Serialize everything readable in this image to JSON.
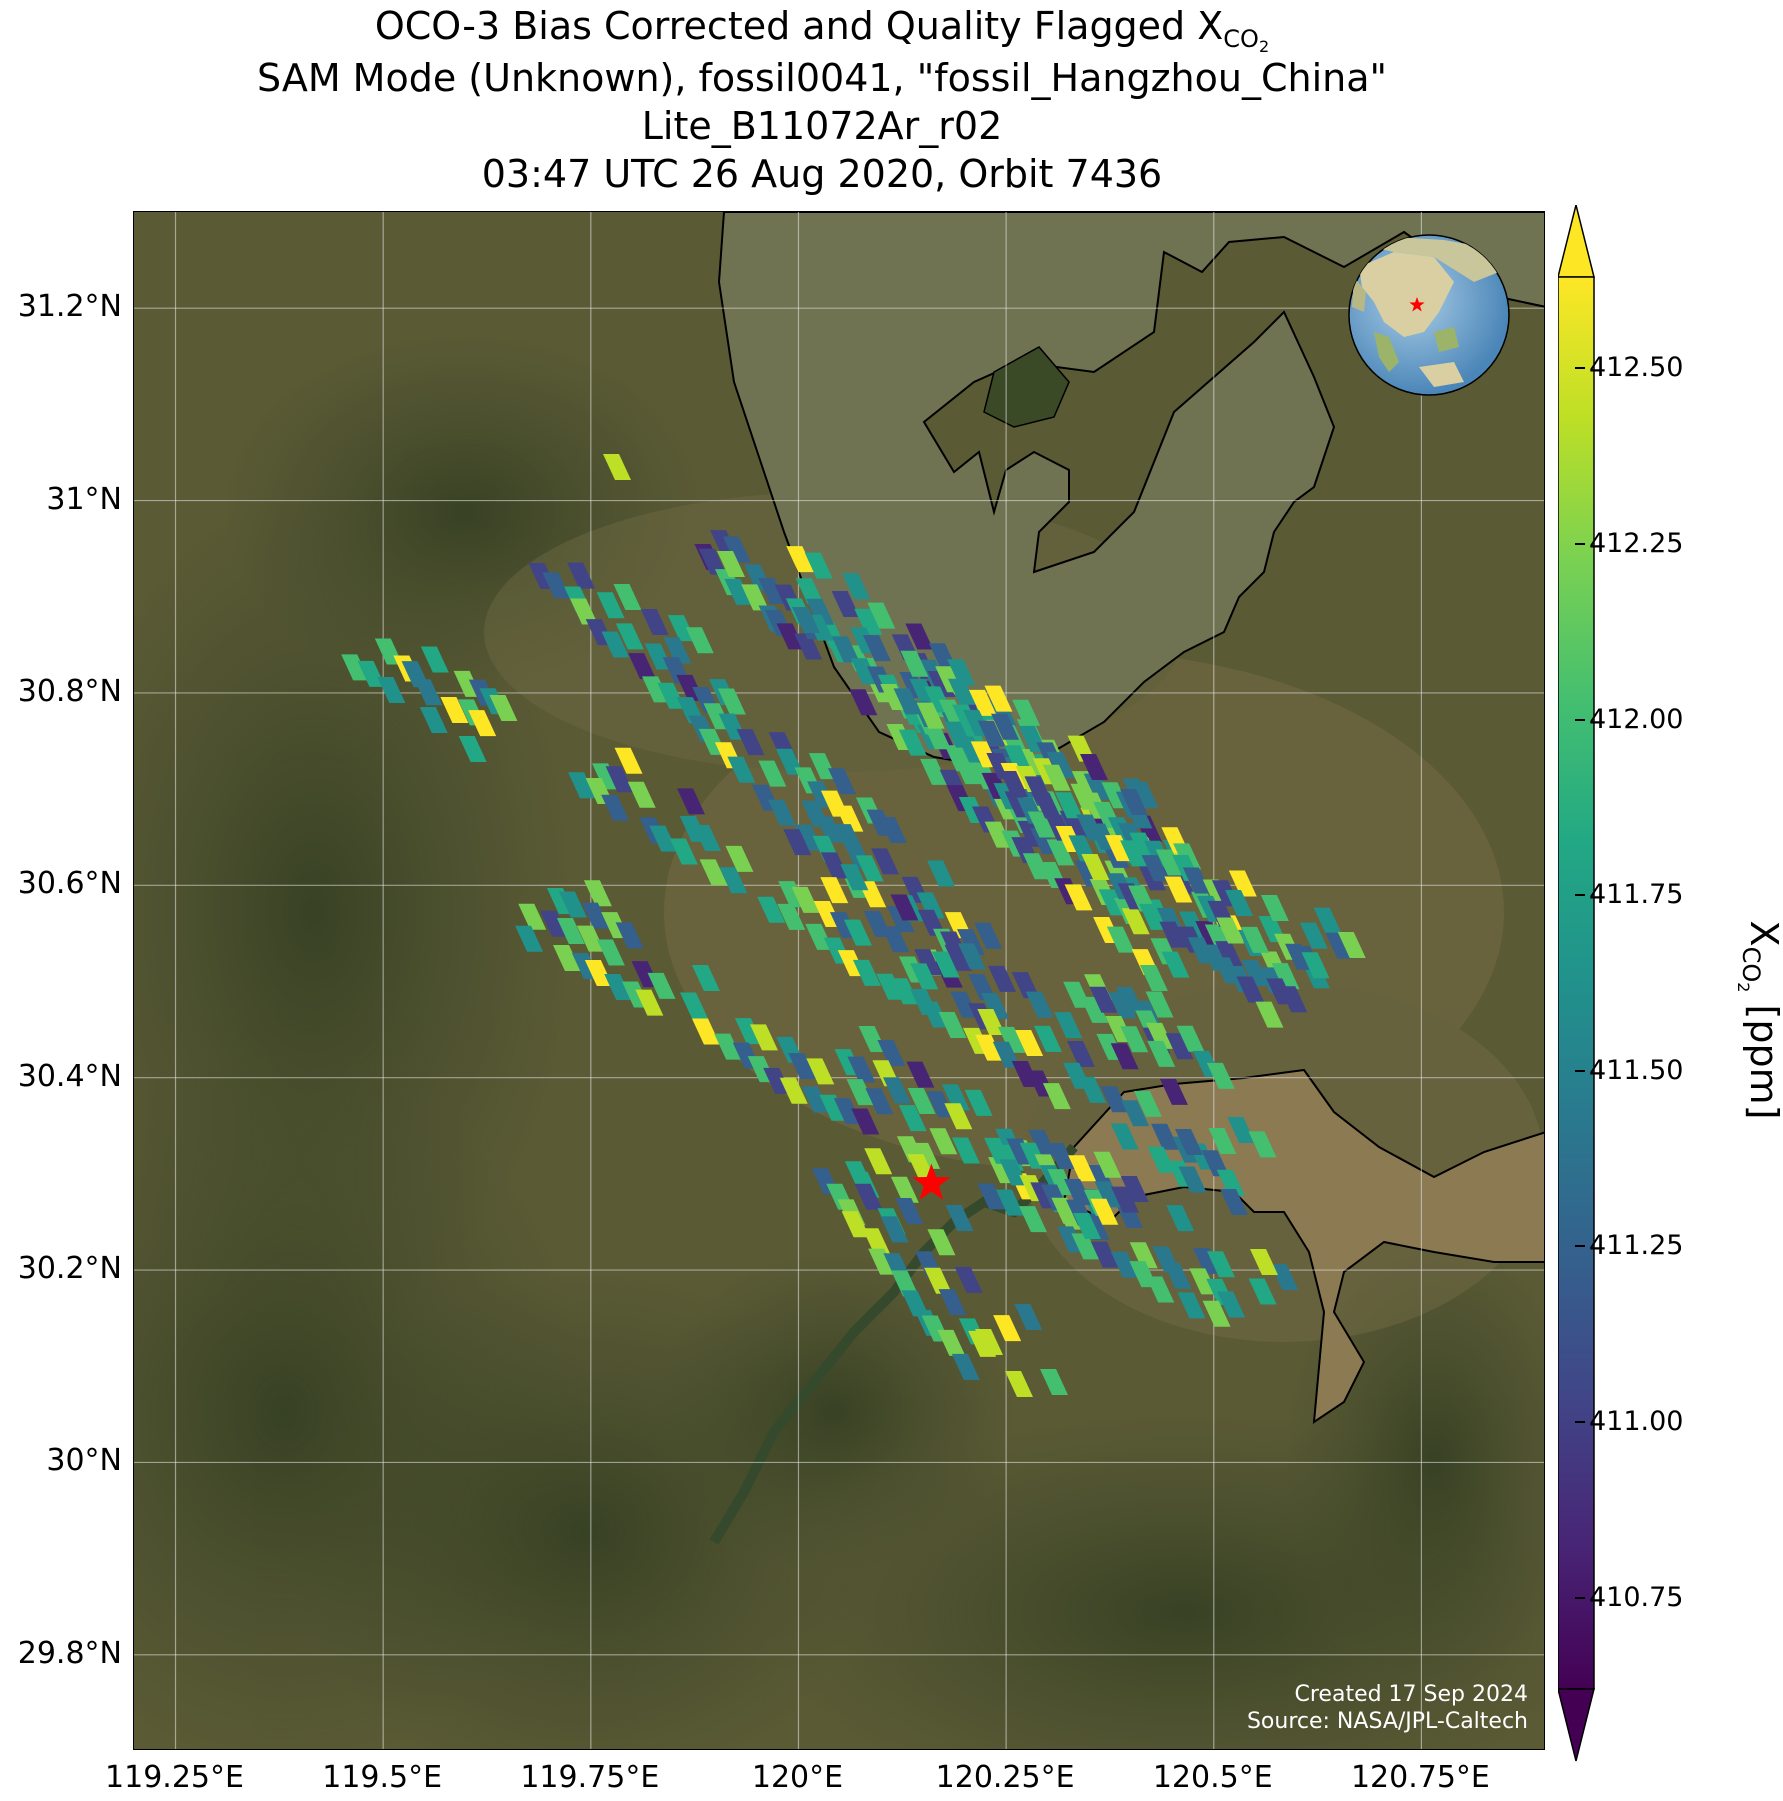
{
  "title": {
    "line1_prefix": "OCO-3 Bias Corrected and Quality Flagged X",
    "line1_subscript": "CO",
    "line1_subsub": "2",
    "line2": "SAM Mode (Unknown), fossil0041, \"fossil_Hangzhou_China\"",
    "line3": "Lite_B11072Ar_r02",
    "line4": "03:47 UTC 26 Aug 2020, Orbit 7436"
  },
  "map": {
    "lon_range": [
      119.2,
      120.9
    ],
    "lat_range": [
      29.7,
      31.3
    ],
    "lat_ticks": [
      {
        "value": 31.2,
        "label": "31.2°N"
      },
      {
        "value": 31.0,
        "label": "31°N"
      },
      {
        "value": 30.8,
        "label": "30.8°N"
      },
      {
        "value": 30.6,
        "label": "30.6°N"
      },
      {
        "value": 30.4,
        "label": "30.4°N"
      },
      {
        "value": 30.2,
        "label": "30.2°N"
      },
      {
        "value": 30.0,
        "label": "30°N"
      },
      {
        "value": 29.8,
        "label": "29.8°N"
      }
    ],
    "lon_ticks": [
      {
        "value": 119.25,
        "label": "119.25°E"
      },
      {
        "value": 119.5,
        "label": "119.5°E"
      },
      {
        "value": 119.75,
        "label": "119.75°E"
      },
      {
        "value": 120.0,
        "label": "120°E"
      },
      {
        "value": 120.25,
        "label": "120.25°E"
      },
      {
        "value": 120.5,
        "label": "120.5°E"
      },
      {
        "value": 120.75,
        "label": "120.75°E"
      }
    ],
    "target_marker": {
      "lon": 120.16,
      "lat": 30.29,
      "color": "#ff0000",
      "symbol": "star"
    },
    "background": "satellite imagery with coastlines (Taihu Lake, Qiantang River estuary)",
    "inset_globe": {
      "marker_color": "#ff0000"
    },
    "gridlines": true
  },
  "colorbar": {
    "label_prefix": "X",
    "label_subscript": "CO",
    "label_subsub": "2",
    "label_suffix": " [ppm]",
    "min": 410.62,
    "max": 412.63,
    "ticks": [
      "412.50",
      "412.25",
      "412.00",
      "411.75",
      "411.50",
      "411.25",
      "411.00",
      "410.75"
    ],
    "tick_values": [
      412.5,
      412.25,
      412.0,
      411.75,
      411.5,
      411.25,
      411.0,
      410.75
    ],
    "colormap": "viridis",
    "extend": "both"
  },
  "credits": {
    "created": "Created 17 Sep 2024",
    "source": "Source: NASA/JPL-Caltech"
  }
}
